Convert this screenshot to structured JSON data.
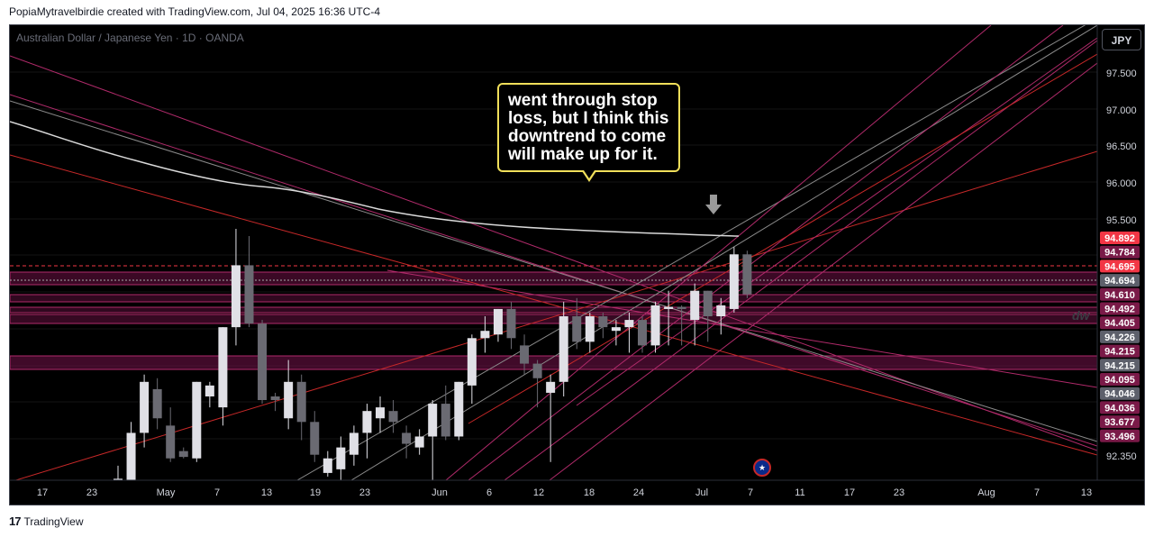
{
  "header": {
    "creator_line": "PopiaMytravelbirdie created with TradingView.com, Jul 04, 2025 16:36 UTC-4"
  },
  "chart": {
    "symbol_line": "Australian Dollar / Japanese Yen · 1D · OANDA",
    "currency_button": "JPY",
    "annotation_text": "went through stop loss, but I think this downtrend to come will make up for it.",
    "watermark": "dw",
    "event_icon": "australia-flag-icon"
  },
  "colors": {
    "background": "#000000",
    "up_candle": "#e0e0e6",
    "down_candle": "#6a6a72",
    "trendline_magenta": "#b02a6a",
    "trendline_red": "#c62828",
    "trendline_grey": "#8a8a8a",
    "moving_average": "#d9d9d9",
    "zone_fill": "#6b1144",
    "callout_border": "#f0df5a"
  },
  "chart_data": {
    "type": "candlestick",
    "y_axis_ticks": [
      "97.500",
      "97.000",
      "96.500",
      "96.000",
      "95.500",
      "92.350"
    ],
    "ylim": [
      92.2,
      97.9
    ],
    "x_axis_ticks": [
      "17",
      "23",
      "May",
      "7",
      "13",
      "19",
      "23",
      "Jun",
      "6",
      "12",
      "18",
      "24",
      "Jul",
      "7",
      "11",
      "17",
      "23",
      "Aug",
      "7",
      "13"
    ],
    "price_labels": [
      {
        "text": "94.892",
        "color": "#f23645"
      },
      {
        "text": "94.784",
        "color": "#7a1a48"
      },
      {
        "text": "94.695",
        "color": "#f23645"
      },
      {
        "text": "94.694",
        "color": "#5d606b"
      },
      {
        "text": "94.610",
        "color": "#7a1a48"
      },
      {
        "text": "94.492",
        "color": "#7a1a48"
      },
      {
        "text": "94.405",
        "color": "#7a1a48"
      },
      {
        "text": "94.226",
        "color": "#5d606b"
      },
      {
        "text": "94.215",
        "color": "#7a1a48"
      },
      {
        "text": "94.215",
        "color": "#5d606b"
      },
      {
        "text": "94.095",
        "color": "#7a1a48"
      },
      {
        "text": "94.046",
        "color": "#5d606b"
      },
      {
        "text": "94.036",
        "color": "#7a1a48"
      },
      {
        "text": "93.677",
        "color": "#7a1a48"
      },
      {
        "text": "93.496",
        "color": "#7a1a48"
      }
    ],
    "candles": [
      {
        "o": 92.2,
        "h": 92.4,
        "l": 92.2,
        "c": 92.22
      },
      {
        "o": 92.2,
        "h": 93.0,
        "l": 92.2,
        "c": 92.85
      },
      {
        "o": 92.85,
        "h": 93.65,
        "l": 92.65,
        "c": 93.55
      },
      {
        "o": 93.45,
        "h": 93.6,
        "l": 92.9,
        "c": 93.05
      },
      {
        "o": 92.95,
        "h": 93.2,
        "l": 92.45,
        "c": 92.5
      },
      {
        "o": 92.6,
        "h": 92.65,
        "l": 92.5,
        "c": 92.52
      },
      {
        "o": 92.5,
        "h": 93.55,
        "l": 92.45,
        "c": 93.55
      },
      {
        "o": 93.35,
        "h": 93.55,
        "l": 93.2,
        "c": 93.5
      },
      {
        "o": 93.2,
        "h": 94.3,
        "l": 92.95,
        "c": 94.3
      },
      {
        "o": 94.3,
        "h": 95.65,
        "l": 94.05,
        "c": 95.15
      },
      {
        "o": 95.15,
        "h": 95.55,
        "l": 94.3,
        "c": 94.35
      },
      {
        "o": 94.35,
        "h": 94.4,
        "l": 93.25,
        "c": 93.3
      },
      {
        "o": 93.35,
        "h": 93.4,
        "l": 93.15,
        "c": 93.3
      },
      {
        "o": 93.05,
        "h": 93.85,
        "l": 92.9,
        "c": 93.55
      },
      {
        "o": 93.55,
        "h": 93.65,
        "l": 92.75,
        "c": 93.0
      },
      {
        "o": 93.0,
        "h": 93.15,
        "l": 92.45,
        "c": 92.55
      },
      {
        "o": 92.3,
        "h": 92.6,
        "l": 92.25,
        "c": 92.5
      },
      {
        "o": 92.35,
        "h": 92.8,
        "l": 92.2,
        "c": 92.65
      },
      {
        "o": 92.55,
        "h": 92.95,
        "l": 92.4,
        "c": 92.85
      },
      {
        "o": 92.85,
        "h": 93.25,
        "l": 92.5,
        "c": 93.15
      },
      {
        "o": 93.05,
        "h": 93.35,
        "l": 92.85,
        "c": 93.2
      },
      {
        "o": 93.15,
        "h": 93.3,
        "l": 92.85,
        "c": 93.0
      },
      {
        "o": 92.85,
        "h": 92.95,
        "l": 92.5,
        "c": 92.7
      },
      {
        "o": 92.65,
        "h": 92.9,
        "l": 92.55,
        "c": 92.8
      },
      {
        "o": 92.8,
        "h": 93.3,
        "l": 92.2,
        "c": 93.25
      },
      {
        "o": 93.25,
        "h": 93.5,
        "l": 92.75,
        "c": 92.8
      },
      {
        "o": 92.8,
        "h": 93.55,
        "l": 92.75,
        "c": 93.55
      },
      {
        "o": 93.5,
        "h": 94.2,
        "l": 93.25,
        "c": 94.15
      },
      {
        "o": 94.15,
        "h": 94.45,
        "l": 93.95,
        "c": 94.25
      },
      {
        "o": 94.2,
        "h": 94.55,
        "l": 94.1,
        "c": 94.55
      },
      {
        "o": 94.55,
        "h": 94.65,
        "l": 94.0,
        "c": 94.15
      },
      {
        "o": 94.05,
        "h": 94.2,
        "l": 93.65,
        "c": 93.8
      },
      {
        "o": 93.8,
        "h": 93.85,
        "l": 93.2,
        "c": 93.6
      },
      {
        "o": 93.4,
        "h": 93.65,
        "l": 92.45,
        "c": 93.55
      },
      {
        "o": 93.55,
        "h": 94.65,
        "l": 93.35,
        "c": 94.45
      },
      {
        "o": 94.45,
        "h": 94.7,
        "l": 94.0,
        "c": 94.1
      },
      {
        "o": 94.1,
        "h": 94.5,
        "l": 93.95,
        "c": 94.45
      },
      {
        "o": 94.45,
        "h": 94.5,
        "l": 94.15,
        "c": 94.3
      },
      {
        "o": 94.25,
        "h": 94.4,
        "l": 94.05,
        "c": 94.3
      },
      {
        "o": 94.3,
        "h": 94.5,
        "l": 93.95,
        "c": 94.4
      },
      {
        "o": 94.4,
        "h": 94.45,
        "l": 93.95,
        "c": 94.05
      },
      {
        "o": 94.05,
        "h": 94.65,
        "l": 93.95,
        "c": 94.6
      },
      {
        "o": 94.55,
        "h": 94.8,
        "l": 94.05,
        "c": 94.58
      },
      {
        "o": 94.58,
        "h": 94.6,
        "l": 94.05,
        "c": 94.55
      },
      {
        "o": 94.4,
        "h": 94.9,
        "l": 94.05,
        "c": 94.8
      },
      {
        "o": 94.8,
        "h": 94.8,
        "l": 94.1,
        "c": 94.45
      },
      {
        "o": 94.45,
        "h": 94.7,
        "l": 94.2,
        "c": 94.6
      },
      {
        "o": 94.55,
        "h": 95.4,
        "l": 94.5,
        "c": 95.3
      },
      {
        "o": 95.3,
        "h": 95.35,
        "l": 94.7,
        "c": 94.75
      }
    ]
  },
  "footer": {
    "brand": "TradingView"
  }
}
